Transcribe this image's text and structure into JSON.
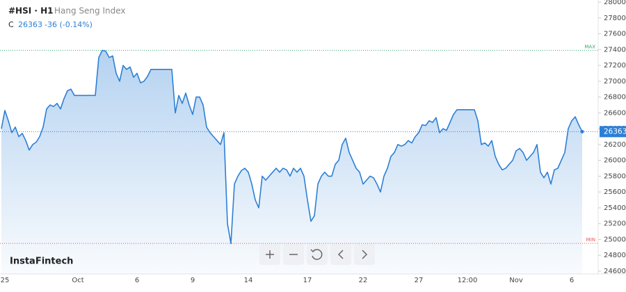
{
  "chart_data": {
    "type": "area",
    "symbol": "#HSI · H1",
    "name": "Hang Seng Index",
    "header": {
      "close_label": "C",
      "change": "-36 (-0.14%)"
    },
    "brand": "InstaFintech",
    "color": "#2c7fd6",
    "categories": [
      null,
      "25",
      null,
      null,
      null,
      null,
      null,
      null,
      null,
      null,
      null,
      null,
      null,
      null,
      null,
      null,
      null,
      null,
      null,
      null,
      null,
      null,
      "Oct",
      null,
      null,
      null,
      null,
      null,
      null,
      null,
      null,
      null,
      null,
      null,
      null,
      null,
      null,
      null,
      null,
      "6",
      null,
      null,
      null,
      null,
      null,
      null,
      null,
      null,
      null,
      null,
      null,
      null,
      null,
      null,
      null,
      "9",
      null,
      null,
      null,
      null,
      null,
      null,
      null,
      null,
      null,
      null,
      null,
      null,
      null,
      null,
      null,
      "14",
      null,
      null,
      null,
      null,
      null,
      null,
      null,
      null,
      null,
      null,
      null,
      null,
      null,
      null,
      null,
      null,
      "17",
      null,
      null,
      null,
      null,
      null,
      null,
      null,
      null,
      null,
      null,
      null,
      null,
      null,
      null,
      null,
      "22",
      null,
      null,
      null,
      null,
      null,
      null,
      null,
      null,
      null,
      null,
      null,
      null,
      null,
      null,
      null,
      "27",
      null,
      null,
      null,
      null,
      null,
      null,
      null,
      null,
      null,
      null,
      null,
      null,
      null,
      "12:00",
      null,
      null,
      null,
      null,
      null,
      null,
      null,
      null,
      null,
      null,
      null,
      null,
      null,
      "Nov",
      null,
      null,
      null,
      null,
      null,
      null,
      null,
      null,
      null,
      null,
      null,
      null,
      null,
      null,
      null,
      "6",
      null,
      null,
      null
    ],
    "values": [
      26400,
      26630,
      26500,
      26350,
      26420,
      26300,
      26340,
      26250,
      26130,
      26200,
      26230,
      26300,
      26420,
      26650,
      26700,
      26680,
      26720,
      26650,
      26780,
      26880,
      26900,
      26820,
      26820,
      26820,
      26820,
      26820,
      26820,
      26820,
      27300,
      27390,
      27380,
      27300,
      27320,
      27100,
      27000,
      27200,
      27150,
      27180,
      27050,
      27100,
      26980,
      27000,
      27060,
      27150,
      27150,
      27150,
      27150,
      27150,
      27150,
      27150,
      26600,
      26820,
      26720,
      26850,
      26700,
      26580,
      26800,
      26800,
      26700,
      26420,
      26350,
      26300,
      26250,
      26200,
      26350,
      25200,
      24950,
      25700,
      25800,
      25870,
      25900,
      25850,
      25700,
      25500,
      25400,
      25800,
      25750,
      25800,
      25850,
      25900,
      25850,
      25900,
      25880,
      25800,
      25900,
      25850,
      25900,
      25800,
      25500,
      25230,
      25300,
      25700,
      25800,
      25850,
      25800,
      25800,
      25950,
      26000,
      26200,
      26280,
      26100,
      26000,
      25900,
      25850,
      25700,
      25750,
      25800,
      25780,
      25700,
      25600,
      25800,
      25900,
      26050,
      26100,
      26200,
      26180,
      26200,
      26250,
      26220,
      26300,
      26350,
      26450,
      26440,
      26500,
      26480,
      26540,
      26350,
      26400,
      26380,
      26480,
      26580,
      26640,
      26640,
      26640,
      26640,
      26640,
      26640,
      26500,
      26200,
      26220,
      26180,
      26250,
      26050,
      25950,
      25880,
      25900,
      25950,
      26000,
      26120,
      26150,
      26100,
      26000,
      26050,
      26100,
      26200,
      25850,
      25780,
      25850,
      25700,
      25880,
      25900,
      26000,
      26100,
      26400,
      26500,
      26550,
      26450,
      26363
    ],
    "max_line": {
      "label": "MAX",
      "value": 27390,
      "color": "#3aa76d"
    },
    "min_line": {
      "label": "MIN",
      "value": 24950,
      "color": "#e05a5a"
    },
    "ylim": [
      24600,
      28000
    ],
    "yticks": [
      24600,
      24800,
      25000,
      25200,
      25400,
      25600,
      25800,
      26000,
      26200,
      26400,
      26600,
      26800,
      27000,
      27200,
      27400,
      27600,
      27800,
      28000
    ],
    "grid": false
  }
}
